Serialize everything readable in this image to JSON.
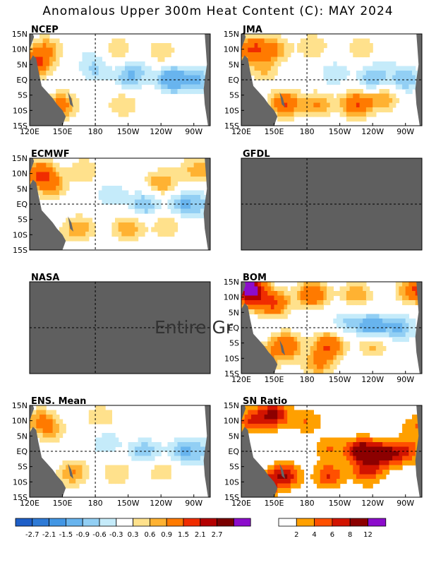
{
  "figure": {
    "title": "Anomalous Upper 300m Heat Content (C): MAY 2024",
    "overlay_text": "Entire Gr"
  },
  "colors": {
    "land": "#666666",
    "missing": "#5f5f5f",
    "frame": "#000000"
  },
  "chart_data": {
    "type": "heatmap",
    "x_ticks": [
      "120E",
      "150E",
      "180",
      "150W",
      "120W",
      "90W"
    ],
    "y_ticks": [
      "15N",
      "10N",
      "5N",
      "EQ",
      "5S",
      "10S",
      "15S"
    ],
    "xlim": [
      "120E",
      "75W"
    ],
    "ylim": [
      "15S",
      "15N"
    ],
    "reference_lines": {
      "lon": "180",
      "lat": "EQ"
    },
    "panels": [
      {
        "name": "NCEP",
        "status": "data",
        "x_ticks_shown": true,
        "anomaly": [
          {
            "lon": 135,
            "lat": 10,
            "v": 0.9
          },
          {
            "lon": 125,
            "lat": 5,
            "v": 1.5
          },
          {
            "lon": 150,
            "lat": -8,
            "v": 0.9
          },
          {
            "lon": 140,
            "lat": -11,
            "v": 0.6
          },
          {
            "lon": 200,
            "lat": 10,
            "v": 0.6
          },
          {
            "lon": 240,
            "lat": 9,
            "v": 0.6
          },
          {
            "lon": 205,
            "lat": -8,
            "v": 0.6
          },
          {
            "lon": 240,
            "lat": -7,
            "v": 0.3
          },
          {
            "lon": 212,
            "lat": 1,
            "v": -0.9
          },
          {
            "lon": 250,
            "lat": 0,
            "v": -1.5
          },
          {
            "lon": 180,
            "lat": 3,
            "v": -0.6
          },
          {
            "lon": 275,
            "lat": 0,
            "v": -0.9
          },
          {
            "lon": 175,
            "lat": 8,
            "v": -0.3
          },
          {
            "lon": 220,
            "lat": 5,
            "v": -0.3
          }
        ]
      },
      {
        "name": "JMA",
        "status": "data",
        "x_ticks_shown": true,
        "anomaly": [
          {
            "lon": 130,
            "lat": 10,
            "v": 1.5
          },
          {
            "lon": 150,
            "lat": 10,
            "v": 0.9
          },
          {
            "lon": 185,
            "lat": 11,
            "v": 0.6
          },
          {
            "lon": 230,
            "lat": 10,
            "v": 0.6
          },
          {
            "lon": 160,
            "lat": -8,
            "v": 1.5
          },
          {
            "lon": 190,
            "lat": -8,
            "v": 0.9
          },
          {
            "lon": 225,
            "lat": -8,
            "v": 1.5
          },
          {
            "lon": 250,
            "lat": -6,
            "v": 0.9
          },
          {
            "lon": 140,
            "lat": 3,
            "v": 0.6
          },
          {
            "lon": 240,
            "lat": 0,
            "v": -0.9
          },
          {
            "lon": 270,
            "lat": 0,
            "v": -0.9
          },
          {
            "lon": 205,
            "lat": 2,
            "v": -0.6
          },
          {
            "lon": 250,
            "lat": 5,
            "v": -0.3
          }
        ]
      },
      {
        "name": "ECMWF",
        "status": "data",
        "x_ticks_shown": false,
        "anomaly": [
          {
            "lon": 130,
            "lat": 10,
            "v": 1.5
          },
          {
            "lon": 140,
            "lat": 6,
            "v": 0.9
          },
          {
            "lon": 170,
            "lat": 11,
            "v": 0.6
          },
          {
            "lon": 240,
            "lat": 7,
            "v": 0.9
          },
          {
            "lon": 268,
            "lat": 11,
            "v": 0.6
          },
          {
            "lon": 290,
            "lat": 12,
            "v": 0.9
          },
          {
            "lon": 165,
            "lat": -8,
            "v": 0.9
          },
          {
            "lon": 210,
            "lat": -8,
            "v": 0.9
          },
          {
            "lon": 245,
            "lat": -7,
            "v": 0.6
          },
          {
            "lon": 140,
            "lat": -11,
            "v": 0.3
          },
          {
            "lon": 225,
            "lat": 0,
            "v": -0.9
          },
          {
            "lon": 260,
            "lat": 0,
            "v": -0.9
          },
          {
            "lon": 195,
            "lat": 3,
            "v": -0.6
          },
          {
            "lon": 280,
            "lat": 0,
            "v": -0.6
          }
        ]
      },
      {
        "name": "GFDL",
        "status": "missing",
        "x_ticks_shown": false,
        "anomaly": []
      },
      {
        "name": "NASA",
        "status": "missing",
        "x_ticks_shown": false,
        "anomaly": []
      },
      {
        "name": "BOM",
        "status": "data",
        "x_ticks_shown": true,
        "anomaly": [
          {
            "lon": 130,
            "lat": 10,
            "v": 1.5
          },
          {
            "lon": 150,
            "lat": 8,
            "v": 1.5
          },
          {
            "lon": 185,
            "lat": 11,
            "v": 1.5
          },
          {
            "lon": 225,
            "lat": 11,
            "v": 0.9
          },
          {
            "lon": 275,
            "lat": 12,
            "v": 0.9
          },
          {
            "lon": 160,
            "lat": -6,
            "v": 1.5
          },
          {
            "lon": 200,
            "lat": -6,
            "v": 1.5
          },
          {
            "lon": 240,
            "lat": -5,
            "v": 0.9
          },
          {
            "lon": 140,
            "lat": -11,
            "v": 0.9
          },
          {
            "lon": 190,
            "lat": -12,
            "v": 0.9
          },
          {
            "lon": 125,
            "lat": 14,
            "v": 2.7
          },
          {
            "lon": 240,
            "lat": 0,
            "v": -1.5
          },
          {
            "lon": 265,
            "lat": 0,
            "v": -0.9
          },
          {
            "lon": 215,
            "lat": 2,
            "v": -0.6
          },
          {
            "lon": 290,
            "lat": 13,
            "v": 1.5
          }
        ]
      },
      {
        "name": "ENS. Mean",
        "status": "data",
        "x_ticks_shown": true,
        "anomaly": [
          {
            "lon": 130,
            "lat": 10,
            "v": 0.9
          },
          {
            "lon": 140,
            "lat": 7,
            "v": 0.6
          },
          {
            "lon": 185,
            "lat": 11,
            "v": 0.6
          },
          {
            "lon": 160,
            "lat": -7,
            "v": 0.9
          },
          {
            "lon": 200,
            "lat": -7,
            "v": 0.6
          },
          {
            "lon": 240,
            "lat": -6,
            "v": 0.6
          },
          {
            "lon": 140,
            "lat": -11,
            "v": 0.3
          },
          {
            "lon": 225,
            "lat": 0,
            "v": -0.9
          },
          {
            "lon": 260,
            "lat": 0,
            "v": -0.9
          },
          {
            "lon": 190,
            "lat": 3,
            "v": -0.6
          },
          {
            "lon": 280,
            "lat": 0,
            "v": -0.6
          },
          {
            "lon": 230,
            "lat": 9,
            "v": 0.3
          }
        ]
      },
      {
        "name": "SN Ratio",
        "status": "data",
        "x_ticks_shown": true,
        "anomaly": [
          {
            "lon": 130,
            "lat": 10,
            "v": 6
          },
          {
            "lon": 150,
            "lat": 12,
            "v": 8
          },
          {
            "lon": 160,
            "lat": -8,
            "v": 8
          },
          {
            "lon": 200,
            "lat": -8,
            "v": 6
          },
          {
            "lon": 230,
            "lat": 0,
            "v": 10
          },
          {
            "lon": 250,
            "lat": -1,
            "v": 8
          },
          {
            "lon": 270,
            "lat": 0,
            "v": 6
          },
          {
            "lon": 200,
            "lat": 1,
            "v": 4
          },
          {
            "lon": 180,
            "lat": 10,
            "v": 4
          },
          {
            "lon": 140,
            "lat": -11,
            "v": 6
          },
          {
            "lon": 235,
            "lat": -7,
            "v": 6
          },
          {
            "lon": 280,
            "lat": 8,
            "v": 4
          }
        ]
      }
    ],
    "colorbars": [
      {
        "name": "anomaly-colorbar",
        "tick_labels": [
          "-2.7",
          "-2.1",
          "-1.5",
          "-0.9",
          "-0.6",
          "-0.3",
          "0.3",
          "0.6",
          "0.9",
          "1.5",
          "2.1",
          "2.7"
        ],
        "thresholds": [
          -2.7,
          -2.1,
          -1.5,
          -0.9,
          -0.6,
          -0.3,
          0.3,
          0.6,
          0.9,
          1.5,
          2.1,
          2.7
        ],
        "colors": [
          "#1e5fc8",
          "#2e7ad6",
          "#4296e4",
          "#68b4ee",
          "#92cff4",
          "#c5ebfa",
          "#ffffff",
          "#ffe18c",
          "#ffb232",
          "#ff7a00",
          "#f02d00",
          "#b40000",
          "#7a0000",
          "#8c0ccc"
        ]
      },
      {
        "name": "sn-colorbar",
        "tick_labels": [
          "2",
          "4",
          "6",
          "8",
          "12"
        ],
        "thresholds": [
          2,
          4,
          6,
          8,
          12
        ],
        "colors": [
          "#ffffff",
          "#ffa000",
          "#ff5000",
          "#d21400",
          "#8c0000",
          "#8c0ccc"
        ]
      }
    ]
  }
}
